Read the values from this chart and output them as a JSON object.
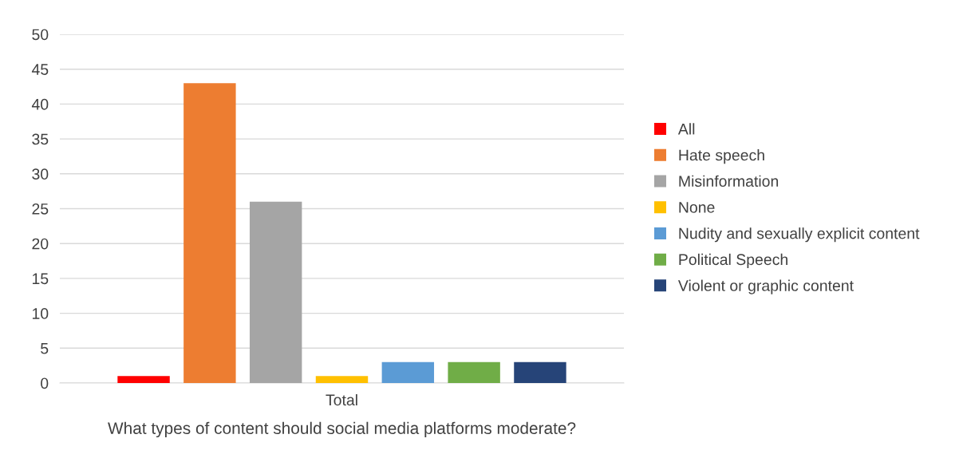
{
  "chart_data": {
    "type": "bar",
    "xlabel": "What types of content should social media platforms moderate?",
    "categories": [
      "Total"
    ],
    "series": [
      {
        "name": "All",
        "color": "#ff0000",
        "values": [
          1
        ]
      },
      {
        "name": "Hate speech",
        "color": "#ed7d31",
        "values": [
          43
        ]
      },
      {
        "name": "Misinformation",
        "color": "#a5a5a5",
        "values": [
          26
        ]
      },
      {
        "name": "None",
        "color": "#ffc000",
        "values": [
          1
        ]
      },
      {
        "name": "Nudity and sexually explicit content",
        "color": "#5b9bd5",
        "values": [
          3
        ]
      },
      {
        "name": "Political Speech",
        "color": "#70ad47",
        "values": [
          3
        ]
      },
      {
        "name": "Violent or graphic content",
        "color": "#264478",
        "values": [
          3
        ]
      }
    ],
    "ylim": [
      0,
      50
    ],
    "yticks": [
      0,
      5,
      10,
      15,
      20,
      25,
      30,
      35,
      40,
      45,
      50
    ],
    "grid": "y",
    "legend": "right"
  }
}
